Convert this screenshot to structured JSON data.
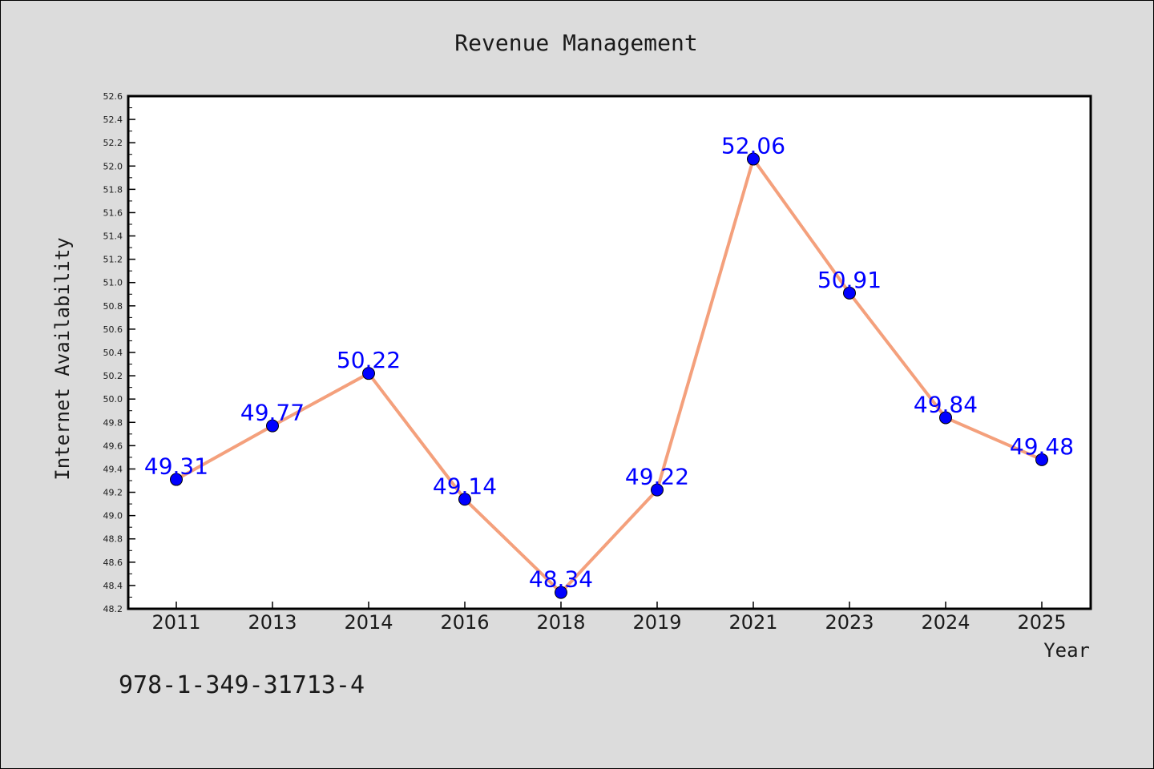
{
  "chart_data": {
    "type": "line",
    "title": "Revenue Management",
    "xlabel": "Year",
    "ylabel": "Internet Availability",
    "categories": [
      "2011",
      "2013",
      "2014",
      "2016",
      "2018",
      "2019",
      "2021",
      "2023",
      "2024",
      "2025"
    ],
    "series": [
      {
        "values": [
          49.31,
          49.77,
          50.22,
          49.14,
          48.34,
          49.22,
          52.06,
          50.91,
          49.84,
          49.48
        ],
        "data_labels": [
          "49.31",
          "49.77",
          "50.22",
          "49.14",
          "48.34",
          "49.22",
          "52.06",
          "50.91",
          "49.84",
          "49.48"
        ],
        "line_color": "#f4a07c",
        "marker_color": "#0000ff",
        "label_color": "#0000ff"
      }
    ],
    "ylim": [
      48.2,
      52.6
    ],
    "yticks": [
      "48.2",
      "48.4",
      "48.6",
      "48.8",
      "49.0",
      "49.2",
      "49.4",
      "49.6",
      "49.8",
      "50.0",
      "50.2",
      "50.4",
      "50.6",
      "50.8",
      "51.0",
      "51.2",
      "51.4",
      "51.6",
      "51.8",
      "52.0",
      "52.2",
      "52.4",
      "52.6"
    ],
    "grid": false,
    "legend": "none"
  },
  "footer_text": "978-1-349-31713-4",
  "colors": {
    "background": "#dcdcdc",
    "plot_background": "#ffffff",
    "axis": "#000000",
    "text": "#1a1a1a"
  }
}
